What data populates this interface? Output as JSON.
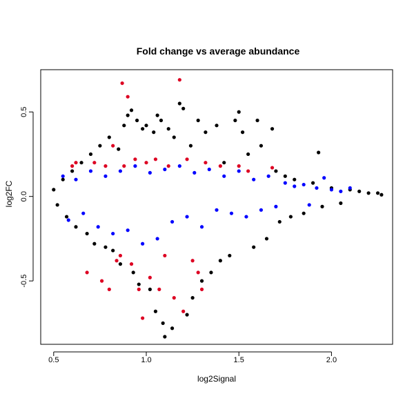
{
  "chart_data": {
    "type": "scatter",
    "title": "Fold change vs average abundance",
    "xlabel": "log2Signal",
    "ylabel": "log2FC",
    "xlim": [
      0.43,
      2.33
    ],
    "ylim": [
      -0.875,
      0.75
    ],
    "x_ticks": [
      0.5,
      1.0,
      1.5,
      2.0
    ],
    "x_tick_labels": [
      "0.5",
      "1.0",
      "1.5",
      "2.0"
    ],
    "y_ticks": [
      -0.5,
      0.0,
      0.5
    ],
    "y_tick_labels": [
      "-0.5",
      "0.0",
      "0.5"
    ],
    "grid": false,
    "legend": "none",
    "series": [
      {
        "color": "#000000",
        "points": [
          [
            0.5,
            0.04
          ],
          [
            0.52,
            -0.05
          ],
          [
            0.55,
            0.1
          ],
          [
            0.57,
            -0.12
          ],
          [
            0.6,
            0.15
          ],
          [
            0.62,
            -0.18
          ],
          [
            0.65,
            0.2
          ],
          [
            0.68,
            -0.22
          ],
          [
            0.7,
            0.25
          ],
          [
            0.72,
            -0.28
          ],
          [
            0.75,
            0.3
          ],
          [
            0.78,
            -0.3
          ],
          [
            0.8,
            0.35
          ],
          [
            0.82,
            -0.32
          ],
          [
            0.85,
            0.28
          ],
          [
            0.86,
            -0.4
          ],
          [
            0.88,
            0.42
          ],
          [
            0.9,
            0.48
          ],
          [
            0.92,
            0.51
          ],
          [
            0.93,
            -0.45
          ],
          [
            0.95,
            0.45
          ],
          [
            0.96,
            -0.52
          ],
          [
            0.98,
            0.4
          ],
          [
            1.0,
            0.42
          ],
          [
            1.02,
            -0.55
          ],
          [
            1.04,
            0.38
          ],
          [
            1.05,
            -0.68
          ],
          [
            1.06,
            0.48
          ],
          [
            1.08,
            0.45
          ],
          [
            1.09,
            -0.75
          ],
          [
            1.1,
            -0.83
          ],
          [
            1.12,
            0.4
          ],
          [
            1.14,
            -0.78
          ],
          [
            1.15,
            0.35
          ],
          [
            1.18,
            0.55
          ],
          [
            1.2,
            0.52
          ],
          [
            1.22,
            -0.7
          ],
          [
            1.24,
            0.3
          ],
          [
            1.25,
            -0.6
          ],
          [
            1.28,
            0.45
          ],
          [
            1.3,
            -0.5
          ],
          [
            1.32,
            0.38
          ],
          [
            1.35,
            -0.45
          ],
          [
            1.38,
            0.42
          ],
          [
            1.4,
            -0.38
          ],
          [
            1.42,
            0.2
          ],
          [
            1.45,
            -0.35
          ],
          [
            1.48,
            0.45
          ],
          [
            1.5,
            0.5
          ],
          [
            1.52,
            0.38
          ],
          [
            1.55,
            0.25
          ],
          [
            1.58,
            -0.3
          ],
          [
            1.6,
            0.45
          ],
          [
            1.62,
            0.3
          ],
          [
            1.65,
            -0.25
          ],
          [
            1.68,
            0.4
          ],
          [
            1.7,
            0.15
          ],
          [
            1.72,
            -0.15
          ],
          [
            1.75,
            0.12
          ],
          [
            1.78,
            -0.12
          ],
          [
            1.8,
            0.1
          ],
          [
            1.85,
            -0.1
          ],
          [
            1.9,
            0.08
          ],
          [
            1.93,
            0.26
          ],
          [
            1.95,
            -0.06
          ],
          [
            2.0,
            0.05
          ],
          [
            2.05,
            -0.04
          ],
          [
            2.1,
            0.04
          ],
          [
            2.15,
            0.03
          ],
          [
            2.2,
            0.02
          ],
          [
            2.25,
            0.02
          ],
          [
            2.27,
            0.01
          ]
        ]
      },
      {
        "color": "#0000ff",
        "points": [
          [
            0.55,
            0.12
          ],
          [
            0.58,
            -0.14
          ],
          [
            0.62,
            0.1
          ],
          [
            0.66,
            -0.1
          ],
          [
            0.7,
            0.15
          ],
          [
            0.74,
            -0.18
          ],
          [
            0.78,
            0.12
          ],
          [
            0.82,
            -0.22
          ],
          [
            0.86,
            0.15
          ],
          [
            0.9,
            -0.2
          ],
          [
            0.94,
            0.18
          ],
          [
            0.98,
            -0.28
          ],
          [
            1.02,
            0.14
          ],
          [
            1.06,
            -0.25
          ],
          [
            1.1,
            0.16
          ],
          [
            1.14,
            -0.15
          ],
          [
            1.18,
            0.18
          ],
          [
            1.22,
            -0.12
          ],
          [
            1.26,
            0.14
          ],
          [
            1.3,
            -0.18
          ],
          [
            1.34,
            0.16
          ],
          [
            1.38,
            -0.08
          ],
          [
            1.42,
            0.12
          ],
          [
            1.46,
            -0.1
          ],
          [
            1.5,
            0.15
          ],
          [
            1.54,
            -0.12
          ],
          [
            1.58,
            0.1
          ],
          [
            1.62,
            -0.08
          ],
          [
            1.66,
            0.12
          ],
          [
            1.7,
            -0.06
          ],
          [
            1.75,
            0.08
          ],
          [
            1.8,
            0.06
          ],
          [
            1.85,
            0.07
          ],
          [
            1.88,
            -0.05
          ],
          [
            1.92,
            0.05
          ],
          [
            1.96,
            0.11
          ],
          [
            2.0,
            0.04
          ],
          [
            2.05,
            0.03
          ],
          [
            2.1,
            0.05
          ]
        ]
      },
      {
        "color": "#dd0022",
        "points": [
          [
            0.6,
            0.18
          ],
          [
            0.62,
            0.2
          ],
          [
            0.68,
            -0.45
          ],
          [
            0.72,
            0.2
          ],
          [
            0.76,
            -0.5
          ],
          [
            0.78,
            0.18
          ],
          [
            0.8,
            -0.55
          ],
          [
            0.82,
            0.3
          ],
          [
            0.84,
            -0.38
          ],
          [
            0.86,
            -0.35
          ],
          [
            0.87,
            0.67
          ],
          [
            0.88,
            0.18
          ],
          [
            0.9,
            0.59
          ],
          [
            0.92,
            -0.4
          ],
          [
            0.94,
            0.22
          ],
          [
            0.96,
            -0.55
          ],
          [
            0.98,
            -0.72
          ],
          [
            1.0,
            0.2
          ],
          [
            1.02,
            -0.48
          ],
          [
            1.05,
            0.22
          ],
          [
            1.07,
            -0.55
          ],
          [
            1.1,
            -0.35
          ],
          [
            1.12,
            0.18
          ],
          [
            1.15,
            -0.6
          ],
          [
            1.18,
            0.69
          ],
          [
            1.2,
            -0.68
          ],
          [
            1.22,
            0.22
          ],
          [
            1.25,
            -0.38
          ],
          [
            1.28,
            -0.45
          ],
          [
            1.3,
            -0.55
          ],
          [
            1.32,
            0.2
          ],
          [
            1.4,
            0.18
          ],
          [
            1.5,
            0.18
          ],
          [
            1.55,
            0.15
          ],
          [
            1.68,
            0.17
          ]
        ]
      }
    ]
  }
}
